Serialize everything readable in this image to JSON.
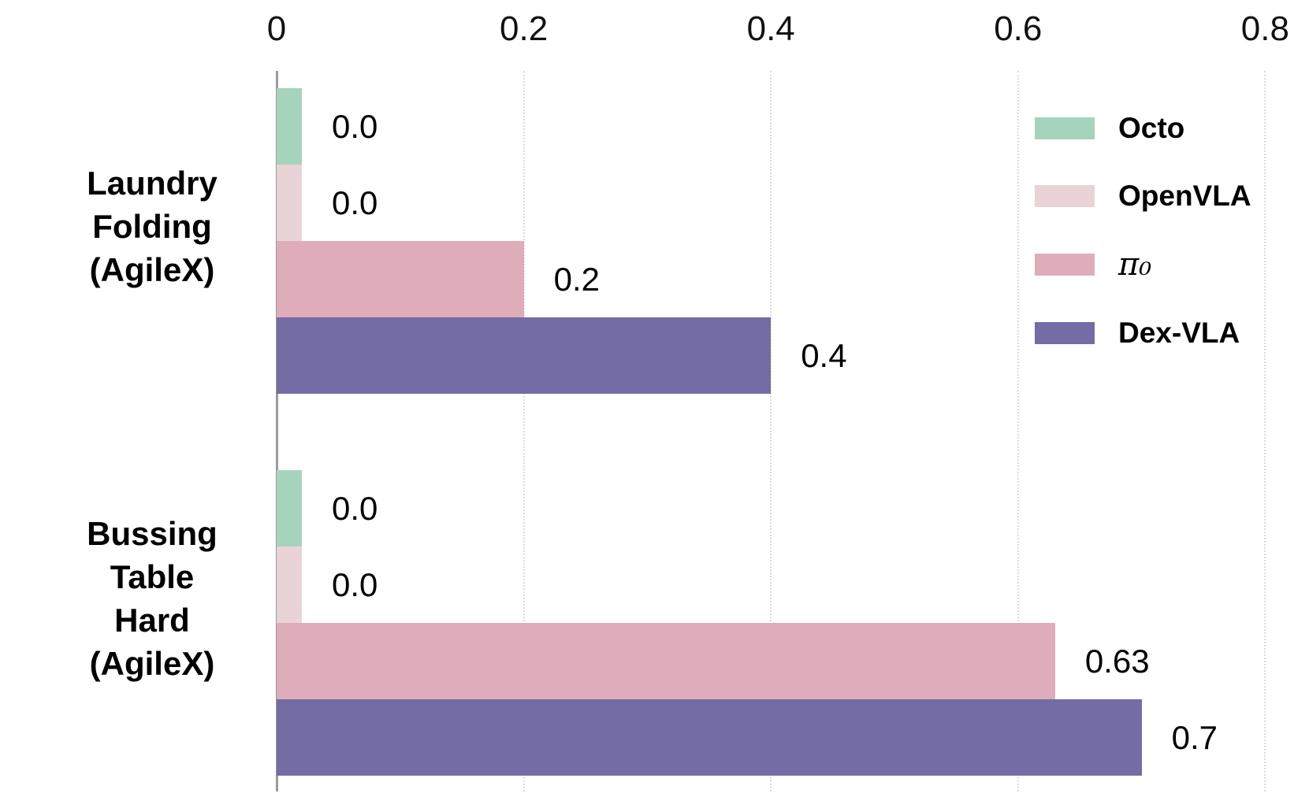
{
  "chart_data": {
    "type": "bar",
    "orientation": "horizontal",
    "title": "",
    "xlabel": "",
    "ylabel": "",
    "categories": [
      "Laundry Folding (AgileX)",
      "Bussing Table Hard (AgileX)"
    ],
    "category_lines": [
      [
        "Laundry",
        "Folding",
        "(AgileX)"
      ],
      [
        "Bussing",
        "Table",
        "Hard",
        "(AgileX)"
      ]
    ],
    "series": [
      {
        "name": "Octo",
        "color": "#a6d3bc",
        "values": [
          0.0,
          0.0
        ],
        "value_labels": [
          "0.0",
          "0.0"
        ]
      },
      {
        "name": "OpenVLA",
        "color": "#e9d3d6",
        "values": [
          0.0,
          0.0
        ],
        "value_labels": [
          "0.0",
          "0.0"
        ]
      },
      {
        "name": "π₀",
        "color": "#dfacba",
        "values": [
          0.2,
          0.63
        ],
        "value_labels": [
          "0.2",
          "0.63"
        ]
      },
      {
        "name": "Dex-VLA",
        "color": "#746ca4",
        "values": [
          0.4,
          0.7
        ],
        "value_labels": [
          "0.4",
          "0.7"
        ]
      }
    ],
    "x_ticks": [
      0,
      0.2,
      0.4,
      0.6,
      0.8
    ],
    "x_tick_labels": [
      "0",
      "0.2",
      "0.4",
      "0.6",
      "0.8"
    ],
    "xlim": [
      0,
      0.835
    ],
    "tick_position": "top",
    "grid": "vertical-dotted",
    "legend_position": "top-right",
    "colors": {
      "axis_line": "#9b9b9b",
      "gridline": "#dcdcdc",
      "text": "#000000"
    }
  }
}
